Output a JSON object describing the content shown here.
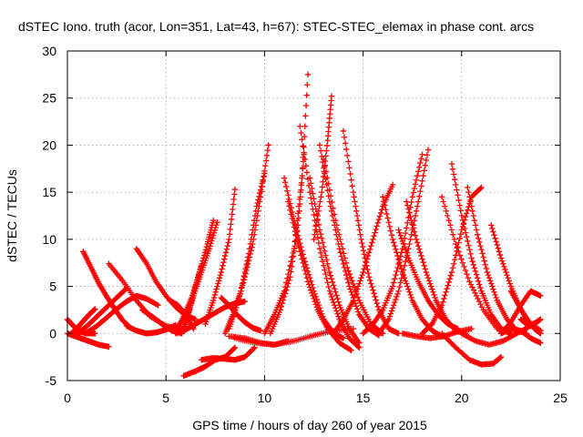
{
  "chart_data": {
    "type": "scatter",
    "title": "dSTEC Iono. truth (acor, Lon=351, Lat=43, h=67): STEC-STEC_elemax in phase cont. arcs",
    "xlabel": "GPS time / hours of day 260 of year 2015",
    "ylabel": "dSTEC  / TECUs",
    "xlim": [
      0,
      25
    ],
    "ylim": [
      -5,
      30
    ],
    "xticks": [
      0,
      5,
      10,
      15,
      20,
      25
    ],
    "yticks": [
      -5,
      0,
      5,
      10,
      15,
      20,
      25,
      30
    ],
    "xtick_labels": [
      "0",
      "5",
      "10",
      "15",
      "20",
      "25"
    ],
    "ytick_labels": [
      "-5",
      "0",
      "5",
      "10",
      "15",
      "20",
      "25",
      "30"
    ],
    "grid": true,
    "marker": "plus",
    "color": "#ff0000",
    "series": [
      {
        "x": [
          0.0,
          0.3,
          0.6,
          1.0,
          1.4
        ],
        "y": [
          1.5,
          0.8,
          0.2,
          0.0,
          0.0
        ]
      },
      {
        "x": [
          0.0,
          0.4,
          0.8,
          1.2,
          1.6,
          2.1
        ],
        "y": [
          0.0,
          -0.3,
          -0.6,
          -0.9,
          -1.2,
          -1.4
        ]
      },
      {
        "x": [
          0.2,
          0.5,
          0.8,
          1.1,
          1.4
        ],
        "y": [
          0.0,
          0.6,
          1.3,
          2.0,
          2.6
        ]
      },
      {
        "x": [
          0.5,
          1.0,
          1.5,
          2.0,
          2.5,
          3.0
        ],
        "y": [
          0.0,
          0.8,
          1.8,
          2.8,
          3.8,
          4.8
        ]
      },
      {
        "x": [
          0.8,
          1.2,
          1.6,
          2.0,
          2.4,
          2.8,
          3.2
        ],
        "y": [
          8.7,
          7.0,
          5.3,
          3.9,
          2.6,
          1.4,
          0.6
        ]
      },
      {
        "x": [
          0.9,
          1.5,
          2.0,
          2.5,
          3.0,
          3.5,
          4.0,
          4.6
        ],
        "y": [
          0.0,
          0.8,
          1.7,
          2.6,
          3.4,
          4.0,
          3.7,
          3.0
        ]
      },
      {
        "x": [
          2.1,
          2.8,
          3.5,
          4.2,
          5.0,
          5.8
        ],
        "y": [
          7.4,
          5.6,
          3.5,
          1.8,
          0.8,
          0.5
        ]
      },
      {
        "x": [
          3.5,
          4.0,
          4.5,
          5.0,
          5.5,
          6.0,
          6.5
        ],
        "y": [
          9.0,
          7.5,
          5.5,
          4.0,
          2.8,
          1.9,
          1.5
        ]
      },
      {
        "x": [
          3.8,
          4.3,
          4.8,
          5.3,
          5.8
        ],
        "y": [
          2.5,
          1.8,
          1.0,
          0.3,
          0.0
        ]
      },
      {
        "x": [
          3.0,
          3.5,
          4.0,
          4.5,
          5.0,
          5.5
        ],
        "y": [
          0.8,
          0.3,
          0.0,
          0.1,
          0.4,
          0.9
        ]
      },
      {
        "x": [
          5.2,
          5.6,
          6.0,
          6.4
        ],
        "y": [
          3.5,
          3.0,
          2.0,
          0.5
        ]
      },
      {
        "x": [
          5.5,
          6.0,
          6.5,
          7.0,
          7.5,
          8.0,
          8.5,
          9.0
        ],
        "y": [
          0.0,
          0.4,
          1.0,
          1.6,
          2.2,
          2.8,
          3.2,
          3.4
        ]
      },
      {
        "x": [
          5.8,
          6.1,
          6.4,
          6.8,
          7.2,
          7.6
        ],
        "y": [
          0.0,
          2.0,
          4.0,
          6.5,
          9.0,
          11.8
        ]
      },
      {
        "x": [
          5.5,
          5.9,
          6.3,
          6.7,
          7.1,
          7.4
        ],
        "y": [
          0.2,
          1.8,
          3.8,
          6.5,
          9.5,
          12.0
        ]
      },
      {
        "x": [
          5.9,
          6.5,
          7.0,
          7.5,
          8.0,
          8.5
        ],
        "y": [
          -4.5,
          -4.0,
          -3.5,
          -2.8,
          -2.5,
          -1.5
        ]
      },
      {
        "x": [
          5.9,
          6.2,
          6.5,
          6.8
        ],
        "y": [
          0.3,
          2.5,
          5.0,
          7.2
        ]
      },
      {
        "x": [
          6.8,
          7.4,
          8.0,
          8.5,
          9.0,
          9.5
        ],
        "y": [
          -2.8,
          -2.6,
          -2.7,
          -2.8,
          -2.5,
          -1.5
        ]
      },
      {
        "x": [
          7.0,
          7.4,
          7.8,
          8.2,
          8.5
        ],
        "y": [
          1.0,
          3.5,
          6.5,
          10.0,
          15.3
        ]
      },
      {
        "x": [
          7.8,
          8.2,
          8.6,
          9.0,
          9.4,
          9.8
        ],
        "y": [
          3.8,
          3.0,
          2.0,
          1.2,
          0.6,
          0.3
        ]
      },
      {
        "x": [
          8.0,
          8.4,
          8.8,
          9.2,
          9.6,
          10.0
        ],
        "y": [
          0.0,
          2.0,
          4.5,
          8.5,
          13.5,
          17.0
        ]
      },
      {
        "x": [
          8.2,
          8.6,
          9.0,
          9.4,
          9.8,
          10.2
        ],
        "y": [
          0.5,
          3.0,
          6.0,
          9.5,
          14.5,
          20.0
        ]
      },
      {
        "x": [
          8.2,
          9.0,
          9.8,
          10.5,
          11.2
        ],
        "y": [
          -0.3,
          -0.5,
          -1.0,
          -1.2,
          -0.8
        ]
      },
      {
        "x": [
          8.5,
          9.5,
          10.5,
          11.5,
          12.5,
          13.5,
          14.5
        ],
        "y": [
          -0.5,
          -1.0,
          -1.2,
          -0.8,
          -0.2,
          0.3,
          0.5
        ]
      },
      {
        "x": [
          10.0,
          10.5,
          11.0,
          11.5,
          11.9,
          12.2
        ],
        "y": [
          0.0,
          2.0,
          4.5,
          9.0,
          16.5,
          27.5
        ]
      },
      {
        "x": [
          10.3,
          10.8,
          11.3,
          11.7,
          12.0
        ],
        "y": [
          0.0,
          2.5,
          6.0,
          11.5,
          19.0
        ]
      },
      {
        "x": [
          11.0,
          11.5,
          12.0,
          12.5,
          13.0,
          13.5,
          14.0
        ],
        "y": [
          16.5,
          12.0,
          8.0,
          4.5,
          1.5,
          0.0,
          -0.5
        ]
      },
      {
        "x": [
          11.2,
          11.7,
          12.2,
          12.7,
          13.2,
          13.8,
          14.4
        ],
        "y": [
          14.0,
          9.5,
          5.5,
          2.5,
          0.5,
          -1.0,
          -1.8
        ]
      },
      {
        "x": [
          11.8,
          12.3,
          12.8,
          13.3,
          13.8,
          14.3,
          14.8
        ],
        "y": [
          22.0,
          15.0,
          9.0,
          4.5,
          1.5,
          -0.5,
          -1.5
        ]
      },
      {
        "x": [
          12.3,
          12.8,
          13.3,
          13.8,
          14.3,
          14.8
        ],
        "y": [
          16.5,
          11.0,
          6.5,
          3.0,
          0.5,
          -1.0
        ]
      },
      {
        "x": [
          12.5,
          12.9,
          13.2,
          13.4
        ],
        "y": [
          10.0,
          15.0,
          20.5,
          25.2
        ]
      },
      {
        "x": [
          12.8,
          13.3,
          13.8,
          14.3,
          14.8,
          15.3,
          15.8
        ],
        "y": [
          20.0,
          14.0,
          9.0,
          5.0,
          2.0,
          0.5,
          -0.2
        ]
      },
      {
        "x": [
          13.0,
          13.6,
          14.2,
          14.8,
          15.4,
          16.0
        ],
        "y": [
          18.5,
          12.0,
          7.0,
          3.5,
          1.0,
          0.0
        ]
      },
      {
        "x": [
          13.5,
          14.0,
          14.5,
          15.0,
          15.5,
          16.0,
          16.5
        ],
        "y": [
          0.0,
          1.5,
          3.5,
          6.5,
          10.0,
          13.5,
          15.8
        ]
      },
      {
        "x": [
          14.0,
          14.5,
          14.9,
          15.3,
          15.8,
          16.3,
          16.8
        ],
        "y": [
          21.5,
          15.0,
          10.0,
          6.0,
          2.5,
          0.5,
          0.0
        ]
      },
      {
        "x": [
          15.0,
          15.5,
          16.0,
          16.5,
          17.0,
          17.5,
          18.0
        ],
        "y": [
          0.0,
          1.0,
          2.5,
          5.0,
          9.0,
          14.5,
          19.0
        ]
      },
      {
        "x": [
          15.8,
          16.3,
          16.8,
          17.3,
          17.8,
          18.3
        ],
        "y": [
          0.0,
          1.5,
          4.5,
          9.0,
          14.0,
          19.5
        ]
      },
      {
        "x": [
          16.0,
          16.5,
          17.0,
          17.5,
          18.0,
          18.5,
          19.0
        ],
        "y": [
          14.5,
          10.0,
          6.5,
          3.5,
          1.5,
          0.3,
          -0.3
        ]
      },
      {
        "x": [
          16.8,
          17.3,
          17.8,
          18.3,
          18.8,
          19.3,
          19.8
        ],
        "y": [
          11.0,
          8.0,
          5.5,
          3.5,
          2.0,
          1.0,
          0.5
        ]
      },
      {
        "x": [
          17.2,
          17.7,
          18.2,
          18.7,
          19.2,
          19.7,
          20.2
        ],
        "y": [
          14.0,
          10.0,
          6.5,
          3.5,
          1.5,
          0.3,
          0.0
        ]
      },
      {
        "x": [
          17.0,
          17.7,
          18.4,
          19.1,
          19.8,
          20.5
        ],
        "y": [
          0.0,
          -0.3,
          -0.5,
          -0.3,
          0.2,
          0.5
        ]
      },
      {
        "x": [
          18.0,
          18.5,
          19.0,
          19.5,
          20.0,
          20.5,
          21.0
        ],
        "y": [
          0.0,
          1.0,
          3.0,
          6.5,
          11.0,
          14.5,
          15.5
        ]
      },
      {
        "x": [
          19.5,
          20.0,
          20.5,
          21.0,
          21.5,
          22.0,
          22.5
        ],
        "y": [
          18.0,
          12.5,
          8.0,
          4.5,
          2.0,
          0.5,
          0.0
        ]
      },
      {
        "x": [
          19.0,
          19.7,
          20.4,
          21.1,
          21.8,
          22.5
        ],
        "y": [
          14.5,
          9.5,
          5.5,
          2.5,
          0.5,
          0.0
        ]
      },
      {
        "x": [
          20.3,
          20.8,
          21.3,
          21.8,
          22.3,
          22.8,
          23.3
        ],
        "y": [
          15.5,
          10.5,
          6.5,
          3.5,
          1.5,
          0.3,
          0.0
        ]
      },
      {
        "x": [
          19.0,
          19.7,
          20.4,
          21.0,
          21.6,
          22.0
        ],
        "y": [
          0.0,
          -1.5,
          -2.8,
          -3.3,
          -3.2,
          -2.5
        ]
      },
      {
        "x": [
          20.0,
          20.7,
          21.4,
          22.1,
          22.8,
          23.5
        ],
        "y": [
          0.0,
          -0.8,
          -1.2,
          -0.8,
          0.0,
          0.8
        ]
      },
      {
        "x": [
          21.5,
          22.0,
          22.5,
          23.0,
          23.5,
          24.0
        ],
        "y": [
          11.5,
          8.0,
          5.0,
          2.5,
          1.0,
          0.3
        ]
      },
      {
        "x": [
          22.0,
          22.5,
          23.0,
          23.5,
          24.0
        ],
        "y": [
          0.0,
          1.2,
          3.0,
          4.5,
          4.0
        ]
      },
      {
        "x": [
          22.5,
          22.9,
          23.3,
          23.7,
          24.0
        ],
        "y": [
          4.5,
          3.0,
          1.5,
          0.5,
          0.0
        ]
      },
      {
        "x": [
          22.0,
          22.5,
          23.0,
          23.5,
          24.0
        ],
        "y": [
          0.0,
          0.5,
          0.3,
          -0.5,
          -1.0
        ]
      },
      {
        "x": [
          23.0,
          23.4,
          23.8,
          24.0
        ],
        "y": [
          1.5,
          0.8,
          1.2,
          1.5
        ]
      }
    ]
  }
}
